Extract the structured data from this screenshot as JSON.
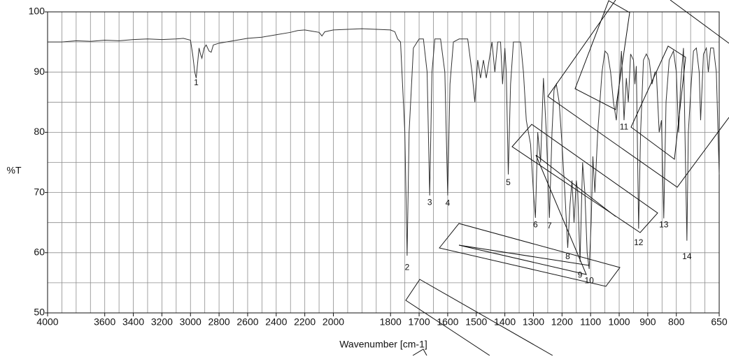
{
  "chart_data": {
    "type": "line",
    "x_label": "Wavenumber [cm-1]",
    "y_label": "%T",
    "xlim": [
      4000,
      650
    ],
    "x_scale_break": 2000,
    "x_scale_ratio": 2,
    "xticks": [
      4000,
      3600,
      3400,
      3200,
      3000,
      2800,
      2600,
      2400,
      2200,
      2000,
      1800,
      1700,
      1600,
      1500,
      1400,
      1300,
      1200,
      1100,
      1000,
      900,
      800,
      650
    ],
    "xgrid": [
      3900,
      3800,
      3700,
      3500,
      3300,
      3100,
      2900,
      2700,
      2500,
      2300,
      2100,
      1950,
      1900,
      1850,
      1750,
      1650,
      1550,
      1450,
      1350,
      1250,
      1150,
      1050,
      950,
      850,
      750,
      700
    ],
    "ylim": [
      50,
      100
    ],
    "yticks": [
      50,
      60,
      70,
      80,
      90,
      100
    ],
    "ygrid": [
      55,
      65,
      75,
      85,
      95
    ],
    "grid": true,
    "color": "#333333",
    "x": [
      4000,
      3900,
      3800,
      3700,
      3600,
      3500,
      3400,
      3300,
      3200,
      3100,
      3050,
      3000,
      2985,
      2970,
      2960,
      2950,
      2940,
      2930,
      2920,
      2905,
      2890,
      2870,
      2855,
      2840,
      2800,
      2700,
      2600,
      2500,
      2400,
      2300,
      2250,
      2200,
      2150,
      2100,
      2080,
      2060,
      2000,
      1950,
      1900,
      1850,
      1800,
      1785,
      1775,
      1765,
      1750,
      1742,
      1735,
      1720,
      1700,
      1685,
      1672,
      1663,
      1655,
      1645,
      1625,
      1610,
      1600,
      1592,
      1580,
      1560,
      1530,
      1515,
      1505,
      1495,
      1485,
      1475,
      1465,
      1455,
      1445,
      1435,
      1425,
      1415,
      1408,
      1400,
      1395,
      1388,
      1380,
      1370,
      1355,
      1345,
      1335,
      1325,
      1310,
      1300,
      1293,
      1285,
      1275,
      1265,
      1255,
      1244,
      1235,
      1228,
      1220,
      1210,
      1200,
      1190,
      1180,
      1172,
      1165,
      1158,
      1150,
      1145,
      1137,
      1128,
      1120,
      1112,
      1105,
      1098,
      1092,
      1085,
      1075,
      1060,
      1050,
      1040,
      1030,
      1020,
      1010,
      1000,
      992,
      983,
      975,
      968,
      960,
      950,
      945,
      940,
      932,
      925,
      915,
      905,
      895,
      885,
      875,
      870,
      860,
      852,
      844,
      836,
      825,
      810,
      800,
      792,
      785,
      775,
      768,
      763,
      758,
      748,
      740,
      730,
      720,
      715,
      705,
      695,
      688,
      680,
      670,
      660,
      650
    ],
    "values": [
      95,
      95,
      95.2,
      95.1,
      95.3,
      95.2,
      95.4,
      95.5,
      95.4,
      95.5,
      95.6,
      95.3,
      93,
      90,
      89,
      91.5,
      94,
      93,
      92.3,
      94,
      94.5,
      93.5,
      93.3,
      94.5,
      94.8,
      95.2,
      95.6,
      95.8,
      96.2,
      96.6,
      96.9,
      97,
      96.8,
      96.6,
      96,
      96.7,
      97,
      97.1,
      97.2,
      97.1,
      97,
      96.7,
      95.5,
      95,
      80,
      59.5,
      80,
      94,
      95.5,
      95.5,
      90,
      69.5,
      90,
      95.5,
      95.5,
      90,
      69.5,
      88,
      95,
      95.5,
      95.5,
      90,
      85,
      92,
      89,
      92,
      89,
      92,
      95,
      90,
      95,
      95,
      88,
      94,
      90,
      73,
      88,
      95,
      95,
      95,
      90,
      82,
      78,
      70,
      65.8,
      80,
      75,
      89,
      80,
      65.8,
      80,
      87,
      88,
      85,
      78,
      70,
      60.8,
      68,
      72,
      65,
      72,
      70,
      58.5,
      75,
      70,
      60,
      57.3,
      65,
      76,
      70,
      80,
      90,
      93.5,
      93,
      90,
      85,
      82,
      88,
      93.5,
      82,
      89,
      85,
      93,
      92,
      88,
      91,
      64,
      80,
      92,
      93,
      92,
      88,
      90,
      90,
      80,
      82,
      65.7,
      85,
      92,
      93.5,
      90,
      80,
      88,
      94,
      75,
      62,
      80,
      88,
      93.5,
      94,
      90,
      82,
      93,
      94,
      90,
      94,
      94,
      90,
      73
    ],
    "annotations": [
      {
        "text": "1",
        "x": 2960,
        "y": 88.2
      },
      {
        "text": "2",
        "x": 1742,
        "y": 57.5
      },
      {
        "text": "3",
        "x": 1663,
        "y": 68.3
      },
      {
        "text": "4",
        "x": 1600,
        "y": 68.2
      },
      {
        "text": "5",
        "x": 1388,
        "y": 71.6
      },
      {
        "text": "6",
        "x": 1293,
        "y": 64.6
      },
      {
        "text": "7",
        "x": 1244,
        "y": 64.4
      },
      {
        "text": "8",
        "x": 1180,
        "y": 59.3
      },
      {
        "text": "9",
        "x": 1137,
        "y": 56.2
      },
      {
        "text": "10",
        "x": 1105,
        "y": 55.3
      },
      {
        "text": "11",
        "x": 983,
        "y": 80.8
      },
      {
        "text": "12",
        "x": 932,
        "y": 61.6
      },
      {
        "text": "13",
        "x": 844,
        "y": 64.6
      },
      {
        "text": "14",
        "x": 763,
        "y": 59.3
      }
    ]
  }
}
